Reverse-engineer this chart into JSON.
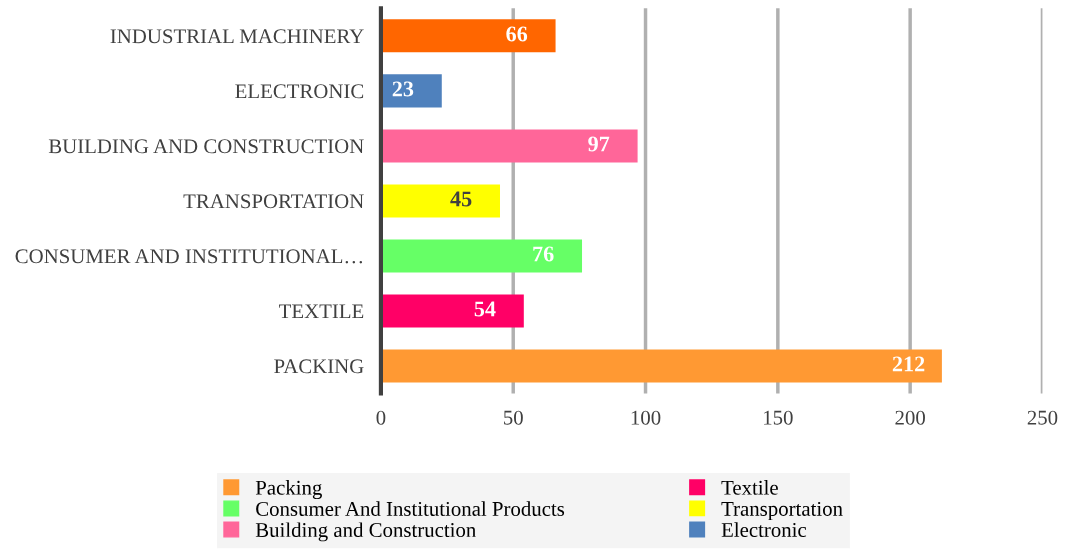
{
  "chart_data": {
    "type": "bar",
    "orientation": "horizontal",
    "categories": [
      "INDUSTRIAL MACHINERY",
      "ELECTRONIC",
      "BUILDING AND CONSTRUCTION",
      "TRANSPORTATION",
      "CONSUMER AND INSTITUTIONAL…",
      "TEXTILE",
      "PACKING"
    ],
    "series": [
      {
        "name": "Packing",
        "color": "#ff9933",
        "values": [
          null,
          null,
          null,
          null,
          null,
          null,
          212
        ]
      },
      {
        "name": "Textile",
        "color": "#ff0066",
        "values": [
          null,
          null,
          null,
          null,
          null,
          54,
          null
        ]
      },
      {
        "name": "Consumer And Institutional Products",
        "color": "#66ff66",
        "values": [
          null,
          null,
          null,
          null,
          76,
          null,
          null
        ]
      },
      {
        "name": "Transportation",
        "color": "#ffff00",
        "values": [
          null,
          null,
          null,
          45,
          null,
          null,
          null
        ]
      },
      {
        "name": "Building and Construction",
        "color": "#ff6699",
        "values": [
          null,
          null,
          97,
          null,
          null,
          null,
          null
        ]
      },
      {
        "name": "Electronic",
        "color": "#4f81bd",
        "values": [
          null,
          23,
          null,
          null,
          null,
          null,
          null
        ]
      },
      {
        "color": "#ff6600",
        "values": [
          66,
          null,
          null,
          null,
          null,
          null,
          null
        ]
      }
    ],
    "xlim": [
      0,
      250
    ],
    "xticks": [
      0,
      50,
      100,
      150,
      200,
      250
    ],
    "grid": "x",
    "legend": "bottom",
    "data_labels": true
  }
}
